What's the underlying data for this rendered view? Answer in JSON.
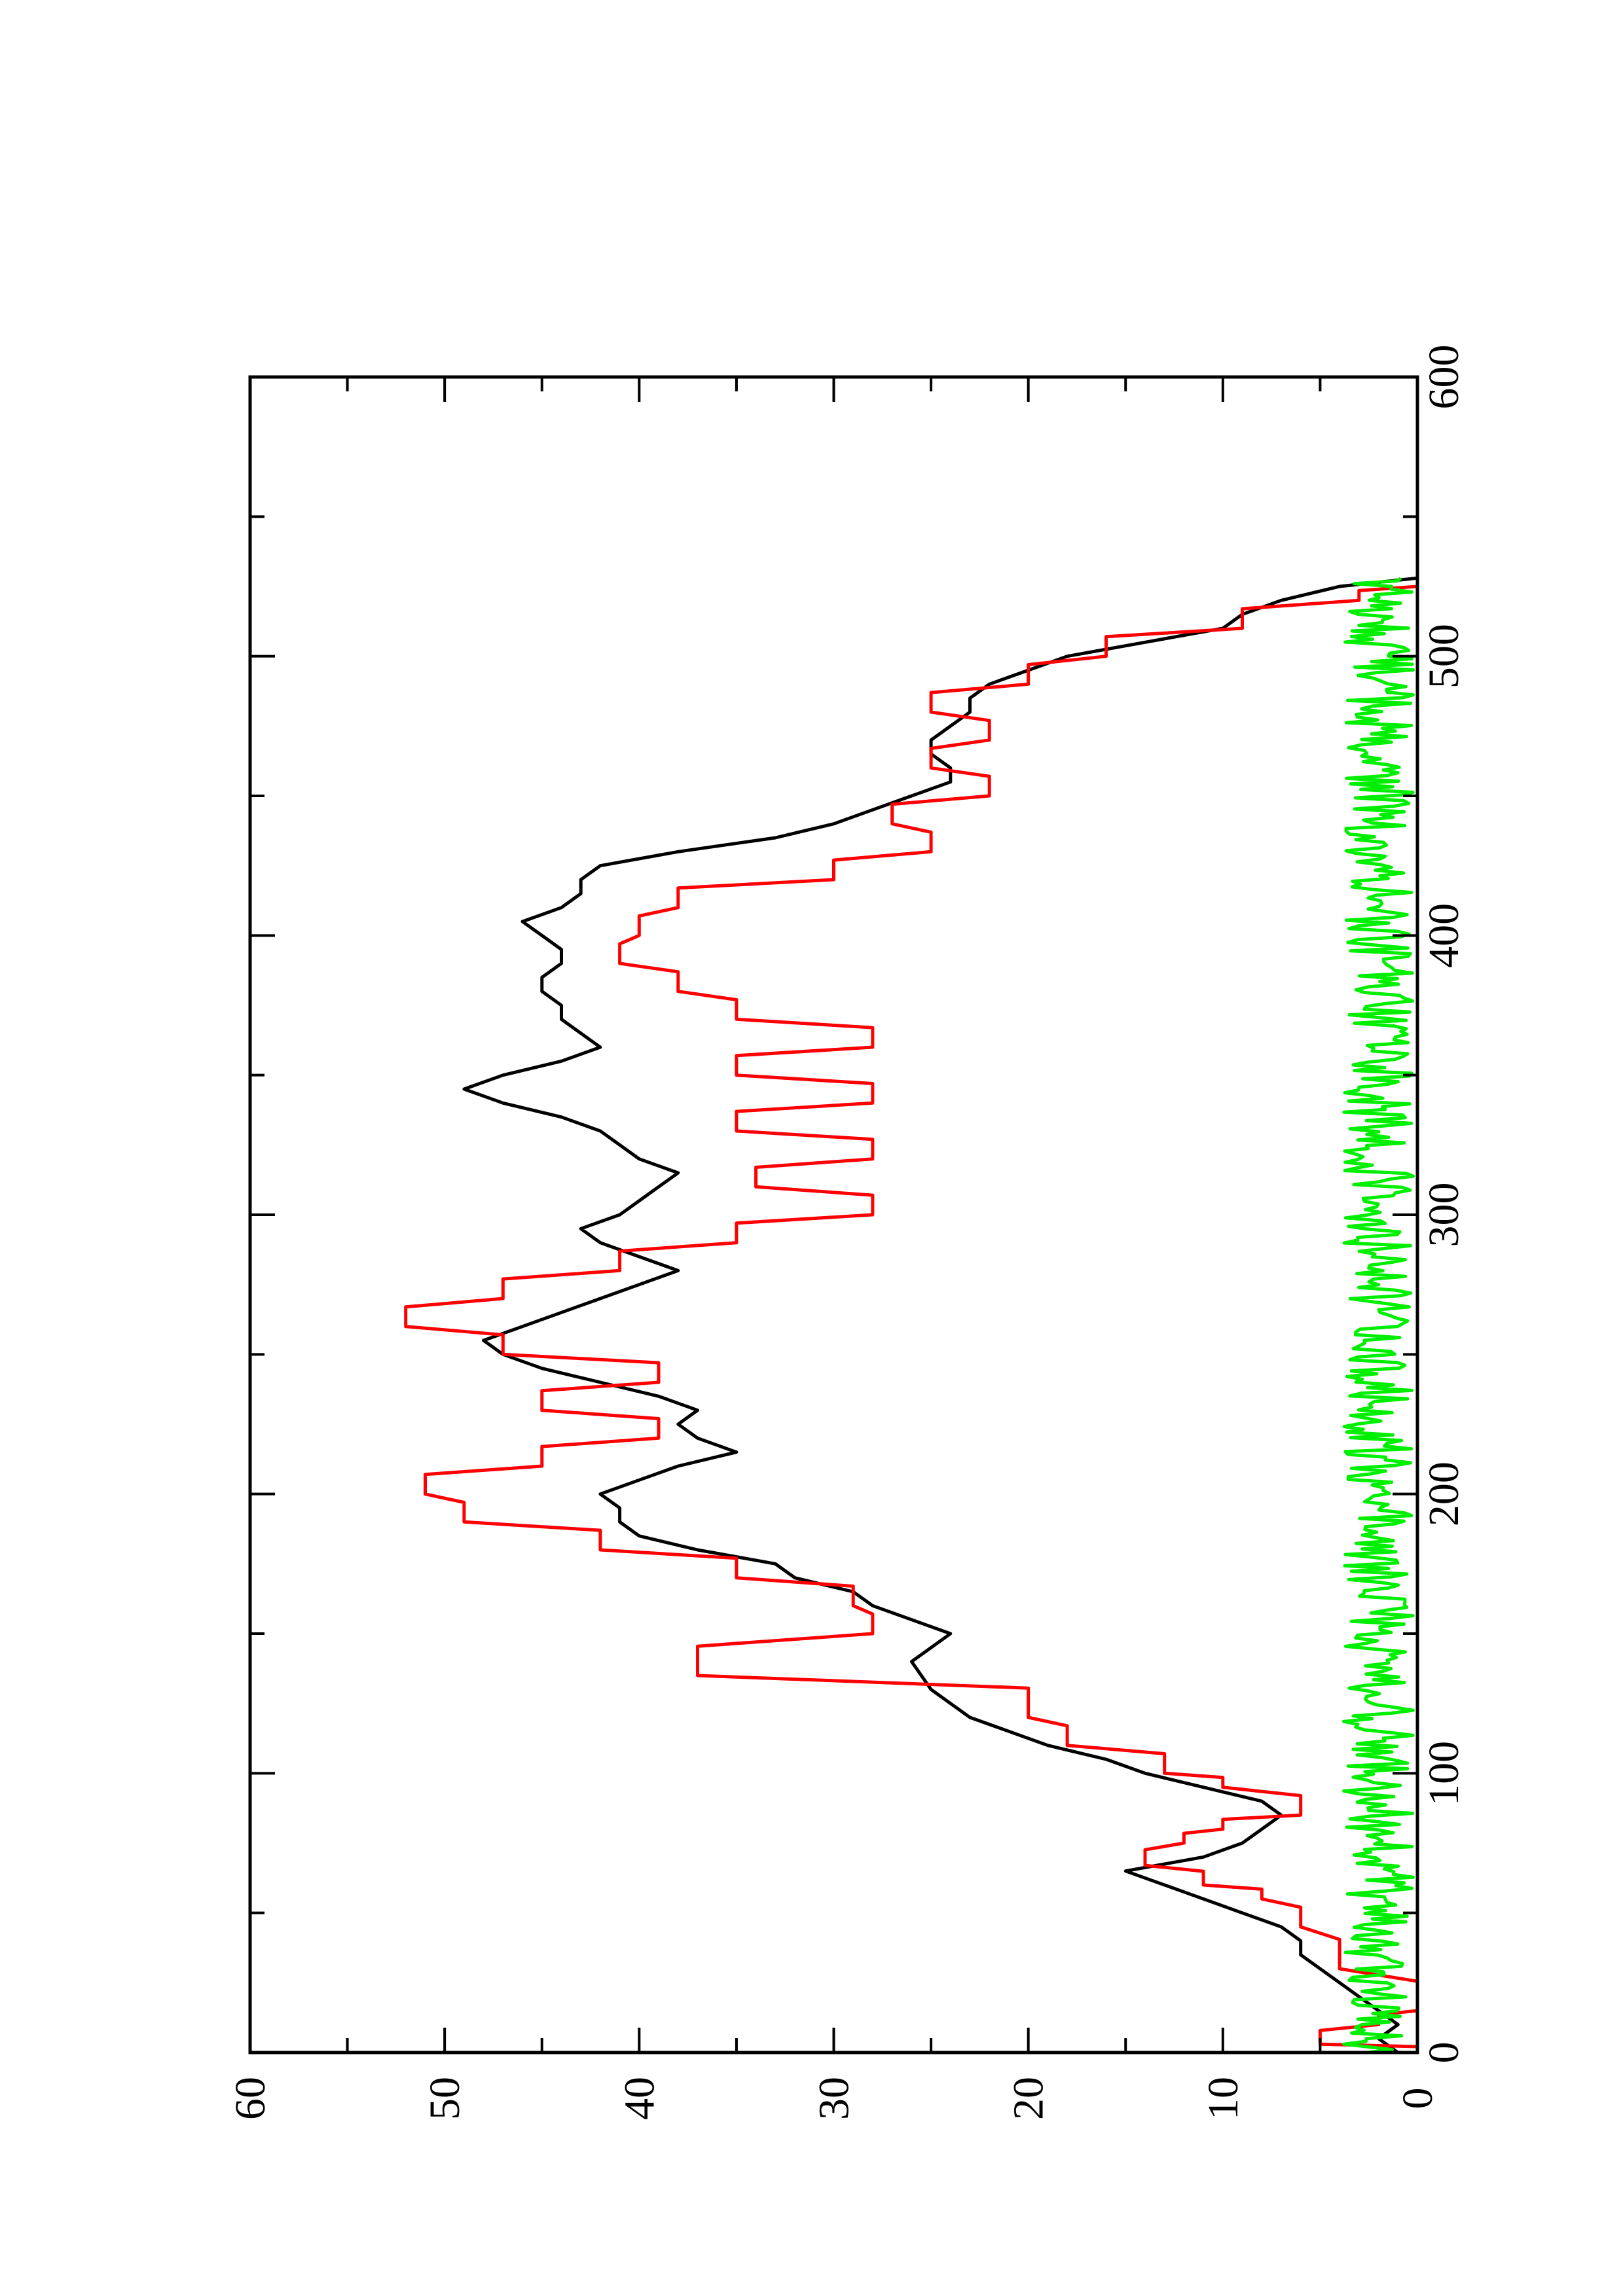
{
  "chart_data": {
    "type": "line",
    "orientation": "rotated-90-ccw",
    "title": "",
    "xlabel": "",
    "ylabel": "",
    "xlim": [
      0,
      600
    ],
    "ylim": [
      0,
      60
    ],
    "x_ticks": [
      "0",
      "100",
      "200",
      "300",
      "400",
      "500",
      "600"
    ],
    "y_ticks": [
      "0",
      "10",
      "20",
      "30",
      "40",
      "50",
      "60"
    ],
    "grid": false,
    "legend": "none",
    "series": [
      {
        "color": "#000000",
        "style": "smooth",
        "x": [
          0,
          5,
          10,
          15,
          20,
          25,
          30,
          35,
          40,
          45,
          50,
          55,
          60,
          65,
          70,
          75,
          80,
          85,
          90,
          95,
          100,
          105,
          110,
          115,
          120,
          130,
          140,
          150,
          155,
          160,
          165,
          170,
          175,
          180,
          185,
          190,
          195,
          200,
          205,
          210,
          215,
          220,
          225,
          230,
          235,
          240,
          245,
          250,
          255,
          260,
          265,
          270,
          275,
          280,
          285,
          290,
          295,
          300,
          305,
          310,
          315,
          320,
          325,
          330,
          335,
          340,
          345,
          350,
          355,
          360,
          365,
          370,
          375,
          380,
          385,
          390,
          395,
          400,
          405,
          410,
          415,
          420,
          425,
          430,
          435,
          440,
          445,
          450,
          455,
          460,
          465,
          470,
          475,
          480,
          485,
          490,
          495,
          500,
          505,
          510,
          515,
          520,
          525,
          528
        ],
        "values": [
          1,
          2,
          1,
          2,
          3,
          4,
          5,
          6,
          6,
          7,
          9,
          11,
          13,
          15,
          11,
          9,
          8,
          7,
          8,
          11,
          14,
          16,
          19,
          21,
          23,
          25,
          26,
          24,
          26,
          28,
          29,
          32,
          33,
          37,
          40,
          41,
          41,
          42,
          40,
          38,
          35,
          37,
          38,
          37,
          39,
          42,
          45,
          47,
          48,
          46,
          44,
          42,
          40,
          38,
          40,
          42,
          43,
          41,
          40,
          39,
          38,
          40,
          41,
          42,
          44,
          47,
          49,
          47,
          44,
          42,
          43,
          44,
          44,
          45,
          45,
          44,
          44,
          45,
          46,
          44,
          43,
          43,
          42,
          38,
          33,
          30,
          28,
          26,
          24,
          24,
          25,
          25,
          24,
          23,
          23,
          22,
          20,
          18,
          14,
          10,
          9,
          7,
          4,
          0
        ]
      },
      {
        "color": "#ff0000",
        "style": "stepped",
        "x": [
          0,
          3,
          10,
          15,
          30,
          45,
          55,
          60,
          67,
          75,
          80,
          85,
          95,
          100,
          110,
          120,
          135,
          150,
          160,
          170,
          180,
          190,
          200,
          210,
          220,
          230,
          240,
          250,
          260,
          270,
          280,
          290,
          300,
          310,
          320,
          330,
          340,
          350,
          360,
          370,
          380,
          390,
          400,
          410,
          420,
          430,
          440,
          450,
          460,
          470,
          480,
          490,
          500,
          510,
          520,
          525
        ],
        "values": [
          0,
          5,
          2,
          0,
          4,
          6,
          8,
          11,
          14,
          12,
          10,
          6,
          10,
          13,
          18,
          20,
          37,
          28,
          29,
          35,
          42,
          49,
          51,
          45,
          39,
          45,
          39,
          47,
          52,
          47,
          41,
          35,
          28,
          34,
          28,
          35,
          28,
          35,
          28,
          35,
          38,
          41,
          40,
          38,
          30,
          25,
          27,
          22,
          25,
          22,
          25,
          20,
          16,
          9,
          3,
          0
        ]
      },
      {
        "color": "#00ee00",
        "style": "noise",
        "x_range": [
          0,
          528
        ],
        "base_level": 2.0,
        "amplitude": 1.8,
        "samples": 530
      }
    ]
  }
}
